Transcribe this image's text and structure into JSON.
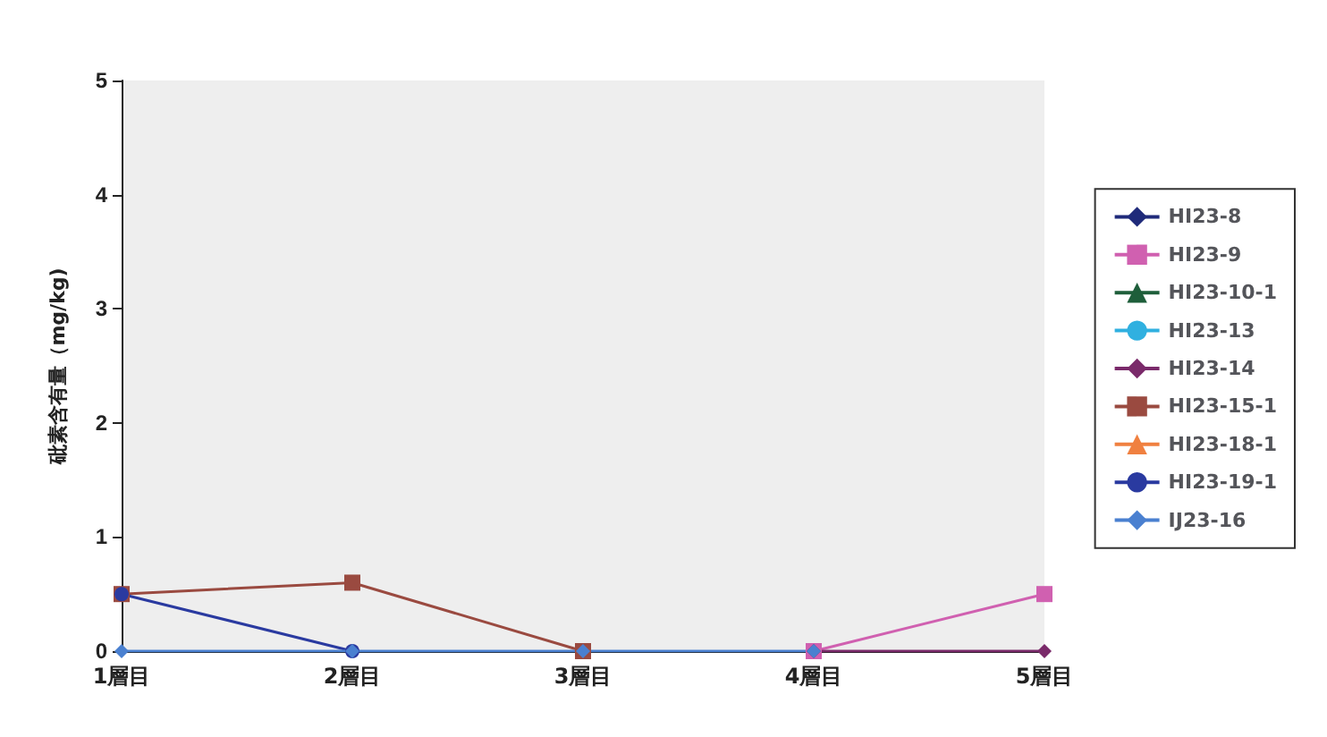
{
  "chart_data": {
    "type": "line",
    "ylabel": "砒素含有量（mg/kg)",
    "categories": [
      "1層目",
      "2層目",
      "3層目",
      "4層目",
      "5層目"
    ],
    "ylim": [
      0,
      5
    ],
    "yticks": [
      0,
      1,
      2,
      3,
      4,
      5
    ],
    "grid": false,
    "legend": "right",
    "series": [
      {
        "name": "HI23-8",
        "color": "#1f2a7a",
        "marker": "diamond",
        "values": [
          null,
          null,
          null,
          null,
          null
        ]
      },
      {
        "name": "HI23-9",
        "color": "#d060b0",
        "marker": "square",
        "values": [
          null,
          null,
          null,
          0,
          0.5
        ]
      },
      {
        "name": "HI23-10-1",
        "color": "#1e5e3a",
        "marker": "triangle",
        "values": [
          null,
          null,
          null,
          null,
          null
        ]
      },
      {
        "name": "HI23-13",
        "color": "#30b0e0",
        "marker": "circle",
        "values": [
          null,
          null,
          null,
          null,
          null
        ]
      },
      {
        "name": "HI23-14",
        "color": "#7a2a6a",
        "marker": "diamond",
        "values": [
          null,
          null,
          null,
          0,
          0
        ]
      },
      {
        "name": "HI23-15-1",
        "color": "#9a4a40",
        "marker": "square",
        "values": [
          0.5,
          0.6,
          0,
          null,
          null
        ]
      },
      {
        "name": "HI23-18-1",
        "color": "#f08040",
        "marker": "triangle",
        "values": [
          null,
          null,
          null,
          null,
          null
        ]
      },
      {
        "name": "HI23-19-1",
        "color": "#2a3aa0",
        "marker": "circle",
        "values": [
          0.5,
          0,
          null,
          null,
          null
        ]
      },
      {
        "name": "IJ23-16",
        "color": "#4a80d0",
        "marker": "diamond",
        "values": [
          0,
          0,
          0,
          0,
          null
        ]
      }
    ]
  }
}
